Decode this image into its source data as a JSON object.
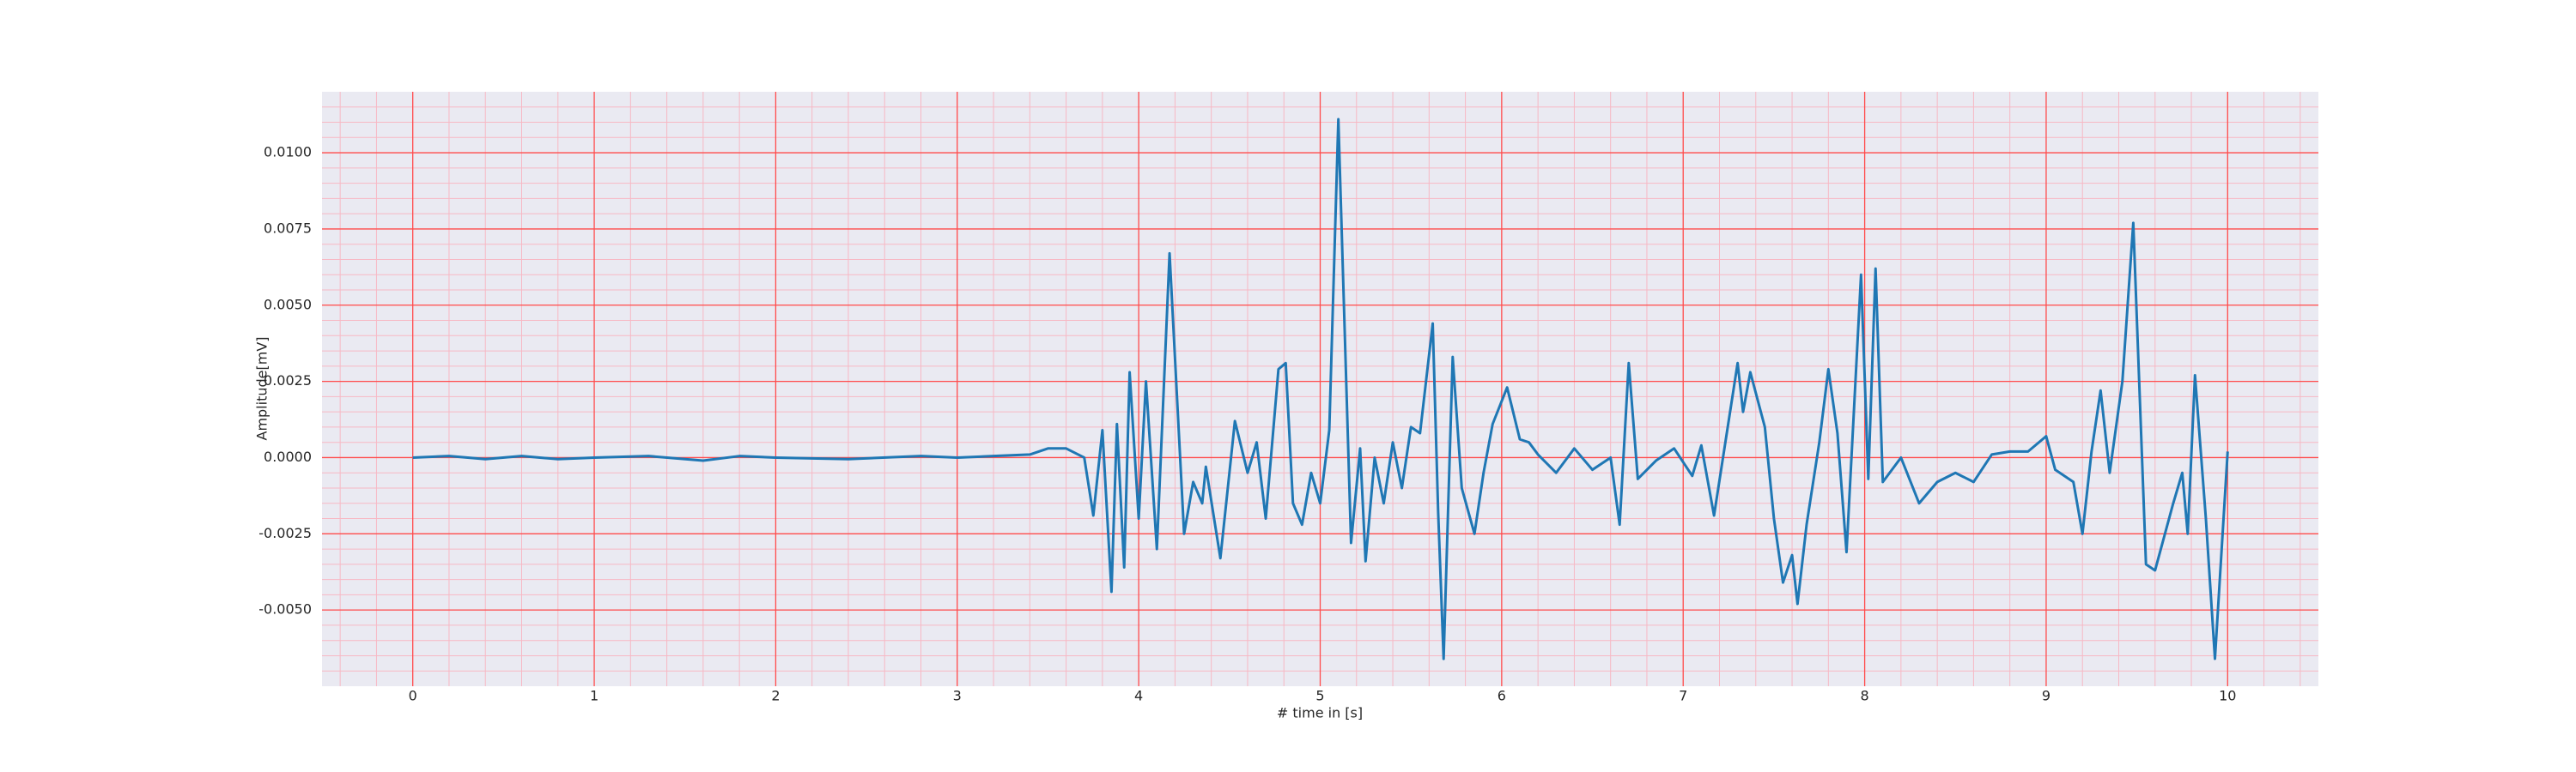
{
  "chart_data": {
    "type": "line",
    "xlabel": "# time in [s]",
    "ylabel": "Amplitude[mV]",
    "color": "#1f77b4",
    "background": "#eaeaf2",
    "grid": true,
    "grid_color": "#ff4d4d",
    "minor_grid": true,
    "minor_grid_color": "#f7b8c4",
    "xlim": [
      -0.5,
      10.5
    ],
    "xticks": [
      0,
      1,
      2,
      3,
      4,
      5,
      6,
      7,
      8,
      9,
      10
    ],
    "ylim": [
      -0.0075,
      0.012
    ],
    "yticks": [
      {
        "value": -0.005,
        "label": "-0.0050"
      },
      {
        "value": -0.0025,
        "label": "-0.0025"
      },
      {
        "value": 0,
        "label": "0.0000"
      },
      {
        "value": 0.0025,
        "label": "0.0025"
      },
      {
        "value": 0.005,
        "label": "0.0050"
      },
      {
        "value": 0.0075,
        "label": "0.0075"
      },
      {
        "value": 0.01,
        "label": "0.0100"
      }
    ],
    "x": [
      0,
      0.2,
      0.4,
      0.6,
      0.8,
      1.0,
      1.3,
      1.6,
      1.8,
      2.0,
      2.4,
      2.8,
      3.0,
      3.2,
      3.4,
      3.5,
      3.6,
      3.7,
      3.75,
      3.8,
      3.85,
      3.88,
      3.92,
      3.95,
      4.0,
      4.04,
      4.1,
      4.17,
      4.25,
      4.3,
      4.35,
      4.37,
      4.45,
      4.53,
      4.6,
      4.65,
      4.7,
      4.77,
      4.81,
      4.85,
      4.9,
      4.95,
      5.0,
      5.05,
      5.1,
      5.17,
      5.22,
      5.25,
      5.3,
      5.35,
      5.4,
      5.45,
      5.5,
      5.55,
      5.62,
      5.65,
      5.68,
      5.73,
      5.78,
      5.85,
      5.9,
      5.95,
      6.03,
      6.1,
      6.15,
      6.2,
      6.3,
      6.4,
      6.5,
      6.6,
      6.65,
      6.7,
      6.75,
      6.85,
      6.95,
      7.05,
      7.1,
      7.17,
      7.3,
      7.33,
      7.37,
      7.45,
      7.5,
      7.55,
      7.6,
      7.63,
      7.68,
      7.75,
      7.8,
      7.85,
      7.9,
      7.98,
      8.02,
      8.06,
      8.1,
      8.2,
      8.3,
      8.4,
      8.5,
      8.6,
      8.7,
      8.8,
      8.9,
      9.0,
      9.05,
      9.15,
      9.2,
      9.25,
      9.3,
      9.35,
      9.42,
      9.48,
      9.55,
      9.6,
      9.7,
      9.75,
      9.78,
      9.82,
      9.88,
      9.93,
      10.0
    ],
    "values": [
      0,
      5e-05,
      -5e-05,
      5e-05,
      -5e-05,
      0,
      5e-05,
      -0.0001,
      5e-05,
      0,
      -5e-05,
      5e-05,
      0,
      5e-05,
      0.0001,
      0.0003,
      0.0003,
      0.0,
      -0.0019,
      0.0009,
      -0.0044,
      0.0011,
      -0.0036,
      0.0028,
      -0.002,
      0.0025,
      -0.003,
      0.0067,
      -0.0025,
      -0.0008,
      -0.0015,
      -0.0003,
      -0.0033,
      0.0012,
      -0.0005,
      0.0005,
      -0.002,
      0.0029,
      0.0031,
      -0.0015,
      -0.0022,
      -0.0005,
      -0.0015,
      0.0009,
      0.0111,
      -0.0028,
      0.0003,
      -0.0034,
      0.0,
      -0.0015,
      0.0005,
      -0.001,
      0.001,
      0.0008,
      0.0044,
      -0.0018,
      -0.0066,
      0.0033,
      -0.001,
      -0.0025,
      -0.0005,
      0.0011,
      0.0023,
      0.0006,
      0.0005,
      0.0001,
      -0.0005,
      0.0003,
      -0.0004,
      0.0,
      -0.0022,
      0.0031,
      -0.0007,
      -0.0001,
      0.0003,
      -0.0006,
      0.0004,
      -0.0019,
      0.0031,
      0.0015,
      0.0028,
      0.001,
      -0.002,
      -0.0041,
      -0.0032,
      -0.0048,
      -0.0022,
      0.0005,
      0.0029,
      0.0008,
      -0.0031,
      0.006,
      -0.0007,
      0.0062,
      -0.0008,
      0.0,
      -0.0015,
      -0.0008,
      -0.0005,
      -0.0008,
      0.0001,
      0.0002,
      0.0002,
      0.0007,
      -0.0004,
      -0.0008,
      -0.0025,
      0.0002,
      0.0022,
      -0.0005,
      0.0025,
      0.0077,
      -0.0035,
      -0.0037,
      -0.0015,
      -0.0005,
      -0.0025,
      0.0027,
      -0.002,
      -0.0066,
      0.0002
    ]
  }
}
